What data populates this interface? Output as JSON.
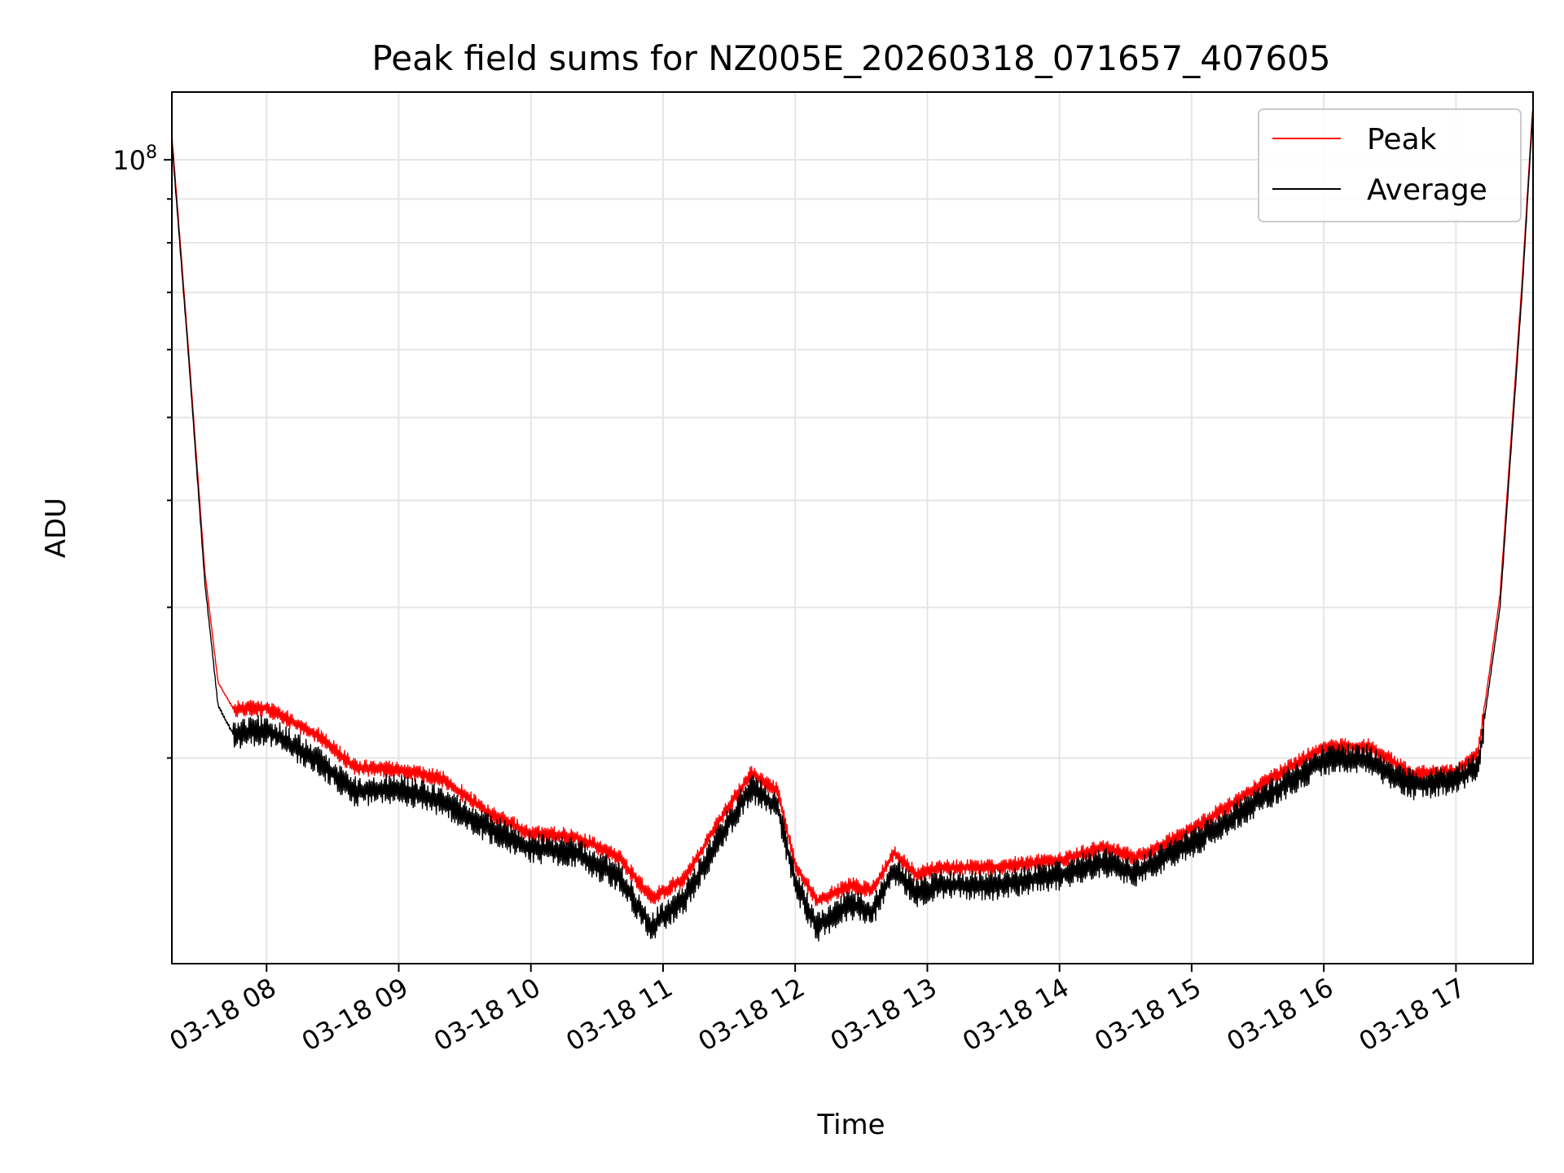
{
  "chart_data": {
    "type": "line",
    "title": "Peak field sums for NZ005E_20260318_071657_407605",
    "xlabel": "Time",
    "ylabel": "ADU",
    "x_axis": {
      "kind": "time",
      "range": [
        "03-18 07:17",
        "03-18 17:35"
      ],
      "ticks": [
        {
          "t": "03-18 08:00",
          "label": "03-18 08"
        },
        {
          "t": "03-18 09:00",
          "label": "03-18 09"
        },
        {
          "t": "03-18 10:00",
          "label": "03-18 10"
        },
        {
          "t": "03-18 11:00",
          "label": "03-18 11"
        },
        {
          "t": "03-18 12:00",
          "label": "03-18 12"
        },
        {
          "t": "03-18 13:00",
          "label": "03-18 13"
        },
        {
          "t": "03-18 14:00",
          "label": "03-18 14"
        },
        {
          "t": "03-18 15:00",
          "label": "03-18 15"
        },
        {
          "t": "03-18 16:00",
          "label": "03-18 16"
        },
        {
          "t": "03-18 17:00",
          "label": "03-18 17"
        }
      ]
    },
    "y_axis": {
      "scale": "log",
      "range": [
        11500000,
        120000000
      ],
      "major_ticks": [
        {
          "value": 100000000,
          "label_base": "10",
          "label_exp": "8"
        }
      ],
      "minor_ticks": [
        20000000,
        30000000,
        40000000,
        50000000,
        60000000,
        70000000,
        80000000,
        90000000
      ]
    },
    "grid": true,
    "legend": {
      "placement": "top-right",
      "entries": [
        {
          "label": "Peak",
          "color": "#ff0000"
        },
        {
          "label": "Average",
          "color": "#000000"
        }
      ]
    },
    "series": [
      {
        "name": "Average",
        "color": "#000000",
        "points": [
          [
            "03-18 07:17",
            105000000
          ],
          [
            "03-18 07:25",
            57000000
          ],
          [
            "03-18 07:32",
            32000000
          ],
          [
            "03-18 07:38",
            23000000
          ],
          [
            "03-18 07:45",
            21300000
          ],
          [
            "03-18 08:00",
            21600000
          ],
          [
            "03-18 08:10",
            20800000
          ],
          [
            "03-18 08:25",
            19700000
          ],
          [
            "03-18 08:40",
            18300000
          ],
          [
            "03-18 09:00",
            18400000
          ],
          [
            "03-18 09:20",
            17800000
          ],
          [
            "03-18 09:40",
            16600000
          ],
          [
            "03-18 10:00",
            15700000
          ],
          [
            "03-18 10:20",
            15500000
          ],
          [
            "03-18 10:40",
            14500000
          ],
          [
            "03-18 10:55",
            12700000
          ],
          [
            "03-18 11:10",
            13700000
          ],
          [
            "03-18 11:25",
            16000000
          ],
          [
            "03-18 11:40",
            18500000
          ],
          [
            "03-18 11:52",
            17500000
          ],
          [
            "03-18 12:00",
            14300000
          ],
          [
            "03-18 12:10",
            12700000
          ],
          [
            "03-18 12:25",
            13500000
          ],
          [
            "03-18 12:35",
            13200000
          ],
          [
            "03-18 12:45",
            14800000
          ],
          [
            "03-18 12:55",
            13900000
          ],
          [
            "03-18 13:05",
            14200000
          ],
          [
            "03-18 13:30",
            14200000
          ],
          [
            "03-18 14:00",
            14600000
          ],
          [
            "03-18 14:20",
            15100000
          ],
          [
            "03-18 14:35",
            14700000
          ],
          [
            "03-18 15:00",
            15900000
          ],
          [
            "03-18 15:30",
            17800000
          ],
          [
            "03-18 16:00",
            19900000
          ],
          [
            "03-18 16:20",
            19900000
          ],
          [
            "03-18 16:40",
            18600000
          ],
          [
            "03-18 17:00",
            18800000
          ],
          [
            "03-18 17:10",
            19600000
          ],
          [
            "03-18 17:20",
            30000000
          ],
          [
            "03-18 17:30",
            70000000
          ],
          [
            "03-18 17:35",
            115000000
          ]
        ]
      },
      {
        "name": "Peak",
        "color": "#ff0000",
        "points": [
          [
            "03-18 07:17",
            107000000
          ],
          [
            "03-18 07:25",
            58000000
          ],
          [
            "03-18 07:32",
            33000000
          ],
          [
            "03-18 07:38",
            24500000
          ],
          [
            "03-18 07:45",
            22800000
          ],
          [
            "03-18 08:00",
            22900000
          ],
          [
            "03-18 08:10",
            22200000
          ],
          [
            "03-18 08:25",
            21100000
          ],
          [
            "03-18 08:40",
            19500000
          ],
          [
            "03-18 09:00",
            19400000
          ],
          [
            "03-18 09:20",
            18900000
          ],
          [
            "03-18 09:40",
            17300000
          ],
          [
            "03-18 10:00",
            16300000
          ],
          [
            "03-18 10:20",
            16200000
          ],
          [
            "03-18 10:40",
            15300000
          ],
          [
            "03-18 10:55",
            13700000
          ],
          [
            "03-18 11:10",
            14500000
          ],
          [
            "03-18 11:25",
            16800000
          ],
          [
            "03-18 11:40",
            19200000
          ],
          [
            "03-18 11:52",
            18300000
          ],
          [
            "03-18 12:00",
            15000000
          ],
          [
            "03-18 12:10",
            13600000
          ],
          [
            "03-18 12:25",
            14200000
          ],
          [
            "03-18 12:35",
            14000000
          ],
          [
            "03-18 12:45",
            15500000
          ],
          [
            "03-18 12:55",
            14600000
          ],
          [
            "03-18 13:05",
            14900000
          ],
          [
            "03-18 13:30",
            14900000
          ],
          [
            "03-18 14:00",
            15200000
          ],
          [
            "03-18 14:20",
            15700000
          ],
          [
            "03-18 14:35",
            15300000
          ],
          [
            "03-18 15:00",
            16500000
          ],
          [
            "03-18 15:30",
            18500000
          ],
          [
            "03-18 16:00",
            20600000
          ],
          [
            "03-18 16:20",
            20600000
          ],
          [
            "03-18 16:40",
            19200000
          ],
          [
            "03-18 17:00",
            19300000
          ],
          [
            "03-18 17:10",
            20200000
          ],
          [
            "03-18 17:20",
            31000000
          ],
          [
            "03-18 17:30",
            72000000
          ],
          [
            "03-18 17:35",
            117000000
          ]
        ]
      }
    ]
  }
}
